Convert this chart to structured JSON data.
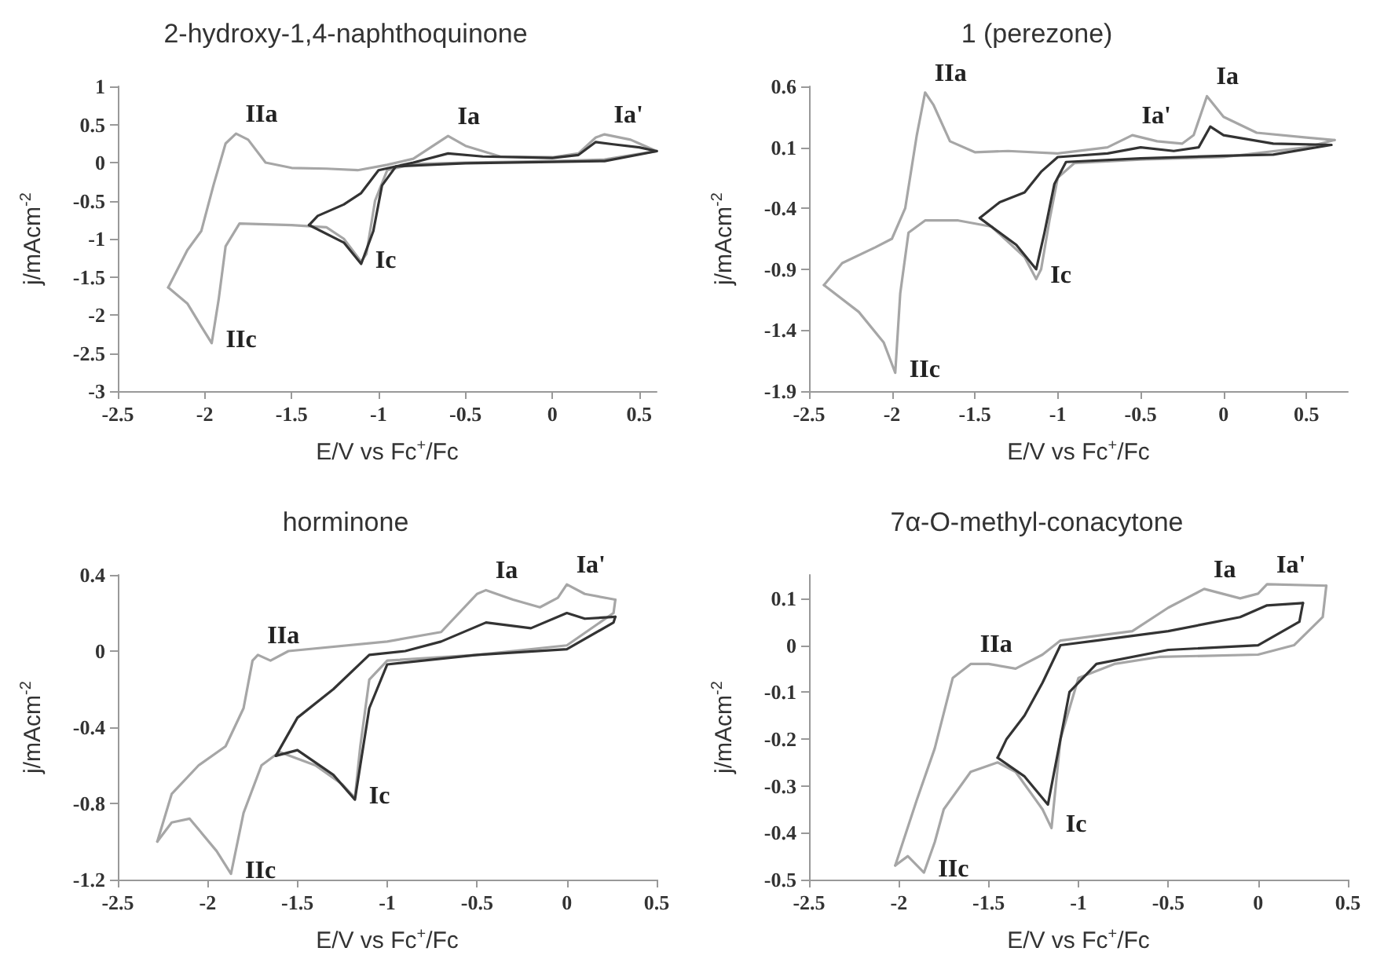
{
  "chart_data": [
    {
      "type": "line",
      "title": "2-hydroxy-1,4-naphthoquinone",
      "xlabel": "E/V vs Fc$^{+}$/Fc",
      "ylabel": "j/mAcm$^{-2}$",
      "marker": "none",
      "line_style": "solid",
      "xlim": [
        -2.5,
        0.6
      ],
      "xticks": [
        -2.5,
        -2,
        -1.5,
        -1,
        -0.5,
        0,
        0.5
      ],
      "ylim": [
        -3,
        1
      ],
      "yticks": [
        -3,
        -2.5,
        -2,
        -1.5,
        -1,
        -0.5,
        0,
        0.5,
        1
      ],
      "series": [
        {
          "color": "#a6a6a6",
          "x": [
            0.6,
            0.3,
            0,
            -0.5,
            -0.8,
            -0.95,
            -1.02,
            -1.07,
            -1.1,
            -1.2,
            -1.3,
            -1.5,
            -1.8,
            -1.88,
            -1.92,
            -1.96,
            -2.02,
            -2.1,
            -2.21
          ],
          "values": [
            0.15,
            0.04,
            0.02,
            0,
            -0.02,
            -0.1,
            -0.5,
            -1.2,
            -1.3,
            -1,
            -0.85,
            -0.82,
            -0.8,
            -1.1,
            -1.8,
            -2.37,
            -2.15,
            -1.85,
            -1.64
          ]
        },
        {
          "color": "#a6a6a6",
          "x": [
            -2.21,
            -2.1,
            -2.02,
            -1.95,
            -1.88,
            -1.82,
            -1.75,
            -1.65,
            -1.5,
            -1.3,
            -1.12,
            -0.95,
            -0.8,
            -0.7,
            -0.6,
            -0.5,
            -0.3,
            0,
            0.15,
            0.25,
            0.3,
            0.45,
            0.5,
            0.6
          ],
          "values": [
            -1.64,
            -1.15,
            -0.9,
            -0.3,
            0.25,
            0.38,
            0.3,
            0,
            -0.07,
            -0.08,
            -0.1,
            -0.03,
            0.05,
            0.2,
            0.35,
            0.22,
            0.08,
            0.07,
            0.12,
            0.33,
            0.37,
            0.3,
            0.25,
            0.15
          ]
        },
        {
          "color": "#333333",
          "x": [
            0.6,
            0.3,
            0,
            -0.5,
            -0.9,
            -0.98,
            -1.03,
            -1.1,
            -1.2,
            -1.4
          ],
          "values": [
            0.15,
            0.02,
            0.01,
            -0.01,
            -0.05,
            -0.3,
            -0.9,
            -1.33,
            -1.05,
            -0.82
          ]
        },
        {
          "color": "#333333",
          "x": [
            -1.4,
            -1.35,
            -1.2,
            -1.1,
            -1,
            -0.8,
            -0.6,
            -0.4,
            0,
            0.15,
            0.25,
            0.35,
            0.5,
            0.6
          ],
          "values": [
            -0.82,
            -0.7,
            -0.55,
            -0.4,
            -0.1,
            0,
            0.12,
            0.08,
            0.06,
            0.1,
            0.27,
            0.24,
            0.2,
            0.15
          ]
        }
      ],
      "annotations": [
        {
          "text": "IIa",
          "x": -1.82,
          "y": 0.38
        },
        {
          "text": "Ia",
          "x": -0.6,
          "y": 0.35
        },
        {
          "text": "Ia'",
          "x": 0.3,
          "y": 0.37
        },
        {
          "text": "Ic",
          "x": -1.1,
          "y": -1.33
        },
        {
          "text": "IIc",
          "x": -1.96,
          "y": -2.37
        }
      ]
    },
    {
      "type": "line",
      "title": "1 (perezone)",
      "xlabel": "E/V vs Fc$^{+}$/Fc",
      "ylabel": "j/mAcm$^{-2}$",
      "marker": "none",
      "line_style": "solid",
      "xlim": [
        -2.5,
        0.75
      ],
      "xticks": [
        -2.5,
        -2,
        -1.5,
        -1,
        -0.5,
        0,
        0.5
      ],
      "ylim": [
        -1.9,
        0.6
      ],
      "yticks": [
        -1.9,
        -1.4,
        -0.9,
        -0.4,
        0.1,
        0.6
      ],
      "series": [
        {
          "color": "#a6a6a6",
          "x": [
            0.67,
            0.5,
            0,
            -0.5,
            -0.9,
            -1,
            -1.05,
            -1.1,
            -1.13,
            -1.2,
            -1.4,
            -1.6,
            -1.8,
            -1.9,
            -1.95,
            -1.98,
            -2.05,
            -2.2,
            -2.41
          ],
          "values": [
            0.16,
            0.1,
            0.02,
            0,
            -0.03,
            -0.15,
            -0.5,
            -0.9,
            -0.98,
            -0.8,
            -0.55,
            -0.5,
            -0.5,
            -0.6,
            -1.1,
            -1.75,
            -1.5,
            -1.25,
            -1.03
          ]
        },
        {
          "color": "#a6a6a6",
          "x": [
            -2.41,
            -2.3,
            -2.1,
            -2,
            -1.92,
            -1.85,
            -1.8,
            -1.75,
            -1.65,
            -1.5,
            -1.3,
            -1,
            -0.7,
            -0.55,
            -0.4,
            -0.25,
            -0.18,
            -0.1,
            0,
            0.2,
            0.5,
            0.67
          ],
          "values": [
            -1.03,
            -0.85,
            -0.72,
            -0.65,
            -0.4,
            0.2,
            0.55,
            0.45,
            0.15,
            0.06,
            0.07,
            0.05,
            0.1,
            0.2,
            0.15,
            0.13,
            0.2,
            0.52,
            0.35,
            0.22,
            0.18,
            0.16
          ]
        },
        {
          "color": "#333333",
          "x": [
            0.65,
            0.3,
            0,
            -0.5,
            -0.95,
            -1.02,
            -1.08,
            -1.13,
            -1.25,
            -1.47
          ],
          "values": [
            0.12,
            0.04,
            0.03,
            0.01,
            -0.02,
            -0.2,
            -0.6,
            -0.9,
            -0.7,
            -0.48
          ]
        },
        {
          "color": "#333333",
          "x": [
            -1.47,
            -1.35,
            -1.2,
            -1.1,
            -1,
            -0.7,
            -0.5,
            -0.3,
            -0.15,
            -0.08,
            0,
            0.3,
            0.65
          ],
          "values": [
            -0.48,
            -0.35,
            -0.27,
            -0.1,
            0.02,
            0.05,
            0.1,
            0.07,
            0.1,
            0.27,
            0.2,
            0.13,
            0.12
          ]
        }
      ],
      "annotations": [
        {
          "text": "IIa",
          "x": -1.8,
          "y": 0.55
        },
        {
          "text": "Ia'",
          "x": -0.55,
          "y": 0.2
        },
        {
          "text": "Ia",
          "x": -0.1,
          "y": 0.52
        },
        {
          "text": "Ic",
          "x": -1.13,
          "y": -0.98
        },
        {
          "text": "IIc",
          "x": -1.98,
          "y": -1.75
        }
      ]
    },
    {
      "type": "line",
      "title": "horminone",
      "xlabel": "E/V vs Fc$^{+}$/Fc",
      "ylabel": "j/mAcm$^{-2}$",
      "marker": "none",
      "line_style": "solid",
      "xlim": [
        -2.5,
        0.5
      ],
      "xticks": [
        -2.5,
        -2,
        -1.5,
        -1,
        -0.5,
        0,
        0.5
      ],
      "ylim": [
        -1.2,
        0.4
      ],
      "yticks": [
        -1.2,
        -0.8,
        -0.4,
        0,
        0.4
      ],
      "series": [
        {
          "color": "#a6a6a6",
          "x": [
            0.27,
            0.26,
            0,
            -0.5,
            -1,
            -1.1,
            -1.15,
            -1.18,
            -1.25,
            -1.4,
            -1.6,
            -1.7,
            -1.8,
            -1.87,
            -1.95,
            -2.1,
            -2.2,
            -2.28
          ],
          "values": [
            0.27,
            0.2,
            0.03,
            -0.02,
            -0.05,
            -0.15,
            -0.5,
            -0.77,
            -0.7,
            -0.6,
            -0.53,
            -0.6,
            -0.85,
            -1.17,
            -1.05,
            -0.88,
            -0.9,
            -1
          ]
        },
        {
          "color": "#a6a6a6",
          "x": [
            -2.28,
            -2.2,
            -2.05,
            -1.9,
            -1.8,
            -1.75,
            -1.72,
            -1.65,
            -1.55,
            -1,
            -0.7,
            -0.5,
            -0.45,
            -0.3,
            -0.15,
            -0.05,
            0,
            0.1,
            0.27
          ],
          "values": [
            -1,
            -0.75,
            -0.6,
            -0.5,
            -0.3,
            -0.05,
            -0.02,
            -0.05,
            0,
            0.05,
            0.1,
            0.3,
            0.32,
            0.27,
            0.23,
            0.28,
            0.35,
            0.3,
            0.27
          ]
        },
        {
          "color": "#333333",
          "x": [
            0.27,
            0.26,
            0,
            -0.5,
            -1,
            -1.1,
            -1.15,
            -1.18,
            -1.3,
            -1.5,
            -1.62
          ],
          "values": [
            0.18,
            0.15,
            0.01,
            -0.02,
            -0.07,
            -0.3,
            -0.6,
            -0.78,
            -0.65,
            -0.52,
            -0.55
          ]
        },
        {
          "color": "#333333",
          "x": [
            -1.62,
            -1.5,
            -1.3,
            -1.1,
            -0.9,
            -0.7,
            -0.45,
            -0.2,
            0,
            0.1,
            0.27
          ],
          "values": [
            -0.55,
            -0.35,
            -0.2,
            -0.02,
            0,
            0.05,
            0.15,
            0.12,
            0.2,
            0.17,
            0.18
          ]
        }
      ],
      "annotations": [
        {
          "text": "IIa",
          "x": -1.72,
          "y": -0.02
        },
        {
          "text": "Ia",
          "x": -0.45,
          "y": 0.32
        },
        {
          "text": "Ia'",
          "x": 0,
          "y": 0.35
        },
        {
          "text": "Ic",
          "x": -1.18,
          "y": -0.78
        },
        {
          "text": "IIc",
          "x": -1.87,
          "y": -1.17
        }
      ]
    },
    {
      "type": "line",
      "title": "7α-O-methyl-conacytone",
      "xlabel": "E/V vs Fc$^{+}$/Fc",
      "ylabel": "j/mAcm$^{-2}$",
      "marker": "none",
      "line_style": "solid",
      "xlim": [
        -2.5,
        0.5
      ],
      "xticks": [
        -2.5,
        -2,
        -1.5,
        -1,
        -0.5,
        0,
        0.5
      ],
      "ylim": [
        -0.5,
        0.15
      ],
      "yticks": [
        -0.5,
        -0.4,
        -0.3,
        -0.2,
        -0.1,
        0,
        0.1
      ],
      "series": [
        {
          "color": "#a6a6a6",
          "x": [
            -2.02,
            -1.9,
            -1.8,
            -1.7,
            -1.6,
            -1.5,
            -1.35,
            -1.2,
            -1.1,
            -0.9,
            -0.7,
            -0.5,
            -0.3,
            -0.1,
            0,
            0.05,
            0.38
          ],
          "values": [
            -0.47,
            -0.33,
            -0.22,
            -0.07,
            -0.04,
            -0.04,
            -0.05,
            -0.02,
            0.01,
            0.02,
            0.03,
            0.08,
            0.12,
            0.1,
            0.11,
            0.13,
            0.127
          ]
        },
        {
          "color": "#a6a6a6",
          "x": [
            0.38,
            0.36,
            0.2,
            0,
            -0.55,
            -0.8,
            -1,
            -1.1,
            -1.15,
            -1.2,
            -1.35,
            -1.45,
            -1.6,
            -1.75,
            -1.8,
            -1.86,
            -1.95,
            -2.02
          ],
          "values": [
            0.127,
            0.06,
            0,
            -0.02,
            -0.025,
            -0.04,
            -0.07,
            -0.2,
            -0.39,
            -0.35,
            -0.27,
            -0.25,
            -0.27,
            -0.35,
            -0.42,
            -0.485,
            -0.45,
            -0.47
          ]
        },
        {
          "color": "#333333",
          "x": [
            0.25,
            0.23,
            0,
            -0.5,
            -0.9,
            -1.05,
            -1.1,
            -1.17,
            -1.3,
            -1.45
          ],
          "values": [
            0.09,
            0.05,
            0,
            -0.01,
            -0.04,
            -0.1,
            -0.2,
            -0.34,
            -0.28,
            -0.24
          ]
        },
        {
          "color": "#333333",
          "x": [
            -1.45,
            -1.4,
            -1.3,
            -1.2,
            -1.1,
            -0.9,
            -0.5,
            -0.3,
            -0.1,
            0.05,
            0.25
          ],
          "values": [
            -0.24,
            -0.2,
            -0.15,
            -0.08,
            0,
            0.01,
            0.03,
            0.045,
            0.06,
            0.085,
            0.09
          ]
        }
      ],
      "annotations": [
        {
          "text": "IIa",
          "x": -1.6,
          "y": -0.04
        },
        {
          "text": "Ia",
          "x": -0.3,
          "y": 0.12
        },
        {
          "text": "Ia'",
          "x": 0.05,
          "y": 0.13
        },
        {
          "text": "Ic",
          "x": -1.15,
          "y": -0.39
        },
        {
          "text": "IIc",
          "x": -1.86,
          "y": -0.485
        }
      ]
    }
  ]
}
